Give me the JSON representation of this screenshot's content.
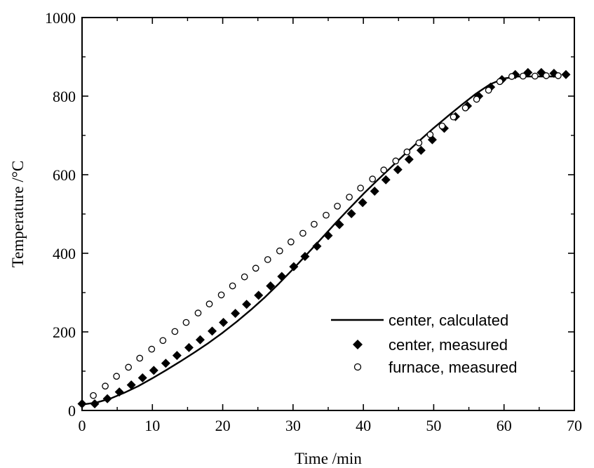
{
  "chart_data": {
    "type": "line",
    "title": "",
    "xlabel": "Time /min",
    "ylabel": "Temperature /°C",
    "xlim": [
      0,
      70
    ],
    "ylim": [
      0,
      1000
    ],
    "xticks": [
      0,
      10,
      20,
      30,
      40,
      50,
      60,
      70
    ],
    "yticks": [
      0,
      200,
      400,
      600,
      800,
      1000
    ],
    "xtick_labels": [
      "0",
      "10",
      "20",
      "30",
      "40",
      "50",
      "60",
      "70"
    ],
    "ytick_labels": [
      "0",
      "200",
      "400",
      "600",
      "800",
      "1000"
    ],
    "grid": false,
    "legend_position": "lower-right",
    "series": [
      {
        "name": "center, calculated",
        "style": "solid-line",
        "color": "#000000",
        "x": [
          0,
          2,
          4,
          6,
          8,
          10,
          12,
          14,
          16,
          18,
          20,
          22,
          24,
          26,
          28,
          30,
          32,
          34,
          36,
          38,
          40,
          42,
          44,
          46,
          48,
          50,
          52,
          54,
          56,
          58,
          60,
          62,
          64,
          66,
          68
        ],
        "y": [
          15,
          20,
          30,
          45,
          62,
          82,
          103,
          125,
          148,
          172,
          198,
          226,
          256,
          288,
          323,
          360,
          398,
          437,
          476,
          514,
          551,
          586,
          620,
          654,
          687,
          719,
          749,
          778,
          806,
          830,
          845,
          850,
          850,
          850,
          850
        ]
      },
      {
        "name": "center, measured",
        "style": "filled-diamond",
        "color": "#000000",
        "x": [
          0,
          1.8,
          3.6,
          5.3,
          7.0,
          8.6,
          10.2,
          11.9,
          13.5,
          15.2,
          16.8,
          18.5,
          20.1,
          21.8,
          23.4,
          25.1,
          26.8,
          28.4,
          30.1,
          31.7,
          33.4,
          35.0,
          36.6,
          38.3,
          39.9,
          41.6,
          43.2,
          44.9,
          46.5,
          48.2,
          49.8,
          51.5,
          53.1,
          54.8,
          56.4,
          58.1,
          59.7,
          61.6,
          63.4,
          65.3,
          67.1,
          68.8
        ],
        "y": [
          17,
          17,
          30,
          47,
          65,
          83,
          102,
          120,
          140,
          160,
          180,
          202,
          224,
          247,
          270,
          293,
          317,
          341,
          366,
          392,
          418,
          445,
          473,
          501,
          529,
          558,
          587,
          613,
          639,
          662,
          689,
          718,
          748,
          775,
          800,
          823,
          842,
          855,
          860,
          860,
          858,
          855
        ]
      },
      {
        "name": "furnace, measured",
        "style": "open-circle",
        "color": "#000000",
        "x": [
          1.6,
          3.3,
          4.9,
          6.6,
          8.2,
          9.9,
          11.5,
          13.2,
          14.8,
          16.5,
          18.1,
          19.8,
          21.4,
          23.1,
          24.7,
          26.4,
          28.1,
          29.7,
          31.4,
          33.0,
          34.7,
          36.3,
          38.0,
          39.6,
          41.3,
          42.9,
          44.6,
          46.2,
          47.9,
          49.5,
          51.2,
          52.8,
          54.5,
          56.1,
          57.8,
          59.4,
          61.1,
          62.7,
          64.4,
          66.0,
          67.7
        ],
        "y": [
          38,
          62,
          87,
          110,
          133,
          156,
          178,
          201,
          224,
          248,
          271,
          294,
          317,
          340,
          362,
          384,
          406,
          429,
          451,
          474,
          497,
          520,
          543,
          566,
          589,
          612,
          635,
          658,
          681,
          702,
          724,
          747,
          770,
          792,
          815,
          837,
          850,
          851,
          851,
          852,
          852
        ]
      }
    ]
  }
}
